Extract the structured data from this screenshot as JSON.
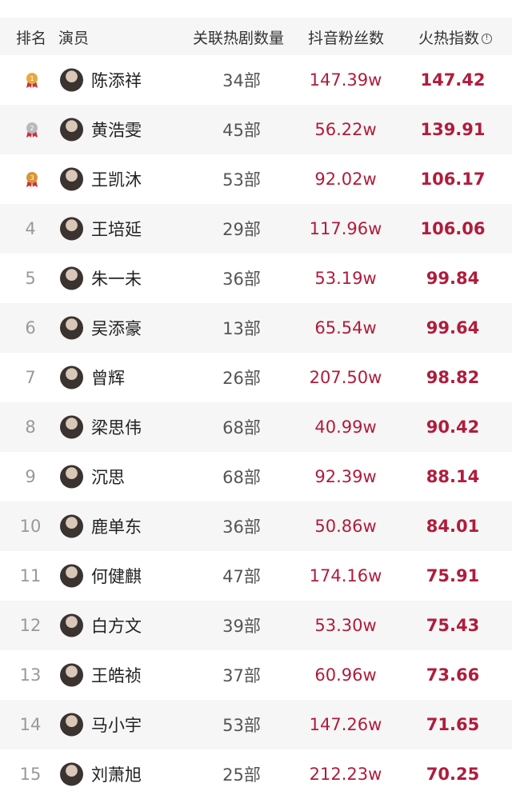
{
  "header": {
    "rank": "排名",
    "actor": "演员",
    "dramas": "关联热剧数量",
    "fans": "抖音粉丝数",
    "index": "火热指数"
  },
  "colors": {
    "accent": "#b01c3c",
    "gold": "#e9a93a",
    "silver": "#b9b9b9"
  },
  "rows": [
    {
      "rank": "1",
      "medal": "gold",
      "name": "陈添祥",
      "dramas": "34部",
      "fans": "147.39w",
      "index": "147.42"
    },
    {
      "rank": "2",
      "medal": "silver",
      "name": "黄浩雯",
      "dramas": "45部",
      "fans": "56.22w",
      "index": "139.91"
    },
    {
      "rank": "3",
      "medal": "bronze",
      "name": "王凯沐",
      "dramas": "53部",
      "fans": "92.02w",
      "index": "106.17"
    },
    {
      "rank": "4",
      "name": "王培延",
      "dramas": "29部",
      "fans": "117.96w",
      "index": "106.06"
    },
    {
      "rank": "5",
      "name": "朱一未",
      "dramas": "36部",
      "fans": "53.19w",
      "index": "99.84"
    },
    {
      "rank": "6",
      "name": "吴添豪",
      "dramas": "13部",
      "fans": "65.54w",
      "index": "99.64"
    },
    {
      "rank": "7",
      "name": "曾辉",
      "dramas": "26部",
      "fans": "207.50w",
      "index": "98.82"
    },
    {
      "rank": "8",
      "name": "梁思伟",
      "dramas": "68部",
      "fans": "40.99w",
      "index": "90.42"
    },
    {
      "rank": "9",
      "name": "沉思",
      "dramas": "68部",
      "fans": "92.39w",
      "index": "88.14"
    },
    {
      "rank": "10",
      "name": "鹿单东",
      "dramas": "36部",
      "fans": "50.86w",
      "index": "84.01"
    },
    {
      "rank": "11",
      "name": "何健麒",
      "dramas": "47部",
      "fans": "174.16w",
      "index": "75.91"
    },
    {
      "rank": "12",
      "name": "白方文",
      "dramas": "39部",
      "fans": "53.30w",
      "index": "75.43"
    },
    {
      "rank": "13",
      "name": "王皓祯",
      "dramas": "37部",
      "fans": "60.96w",
      "index": "73.66"
    },
    {
      "rank": "14",
      "name": "马小宇",
      "dramas": "53部",
      "fans": "147.26w",
      "index": "71.65"
    },
    {
      "rank": "15",
      "name": "刘萧旭",
      "dramas": "25部",
      "fans": "212.23w",
      "index": "70.25"
    }
  ]
}
